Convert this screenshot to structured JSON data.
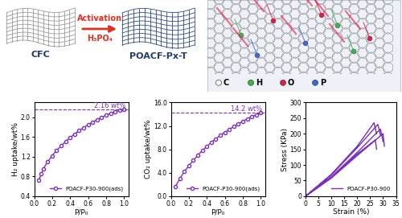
{
  "diagram": {
    "start_label": "CFC",
    "arrow_label": "Activation",
    "reagent": "H₃PO₄",
    "product_label": "POACF-Px-T",
    "atom_legend": [
      {
        "label": "C",
        "color": "#ffffff"
      },
      {
        "label": "H",
        "color": "#3cb44b"
      },
      {
        "label": "O",
        "color": "#e6194b"
      },
      {
        "label": "P",
        "color": "#4363d8"
      }
    ]
  },
  "chart_data": [
    {
      "type": "line",
      "x_label": "P/P₀",
      "y_label": "H₂ uptake/wt%",
      "xlim": [
        0,
        1.05
      ],
      "ylim": [
        0.4,
        2.3
      ],
      "xticks": [
        {
          "value": 0,
          "label": "0.0"
        },
        {
          "value": 0.2,
          "label": "0.2"
        },
        {
          "value": 0.4,
          "label": "0.4"
        },
        {
          "value": 0.6,
          "label": "0.6"
        },
        {
          "value": 0.8,
          "label": "0.8"
        },
        {
          "value": 1.0,
          "label": "1.0"
        }
      ],
      "yticks": [
        {
          "value": 0.4,
          "label": "0.4"
        },
        {
          "value": 0.8,
          "label": "0.8"
        },
        {
          "value": 1.2,
          "label": "1.2"
        },
        {
          "value": 1.6,
          "label": "1.6"
        },
        {
          "value": 2.0,
          "label": "2.0"
        }
      ],
      "hline": 2.16,
      "annotations": [
        "2.16 wt%"
      ],
      "legend": "lower right",
      "series": [
        {
          "name": "POACF-P30-900(ads)",
          "color": "#7b2fbf",
          "marker": "o",
          "line_style": "solid",
          "x": [
            0.05,
            0.08,
            0.1,
            0.15,
            0.2,
            0.25,
            0.3,
            0.35,
            0.4,
            0.45,
            0.5,
            0.55,
            0.6,
            0.65,
            0.7,
            0.75,
            0.8,
            0.85,
            0.9,
            0.95,
            1.0
          ],
          "values": [
            0.72,
            0.85,
            0.95,
            1.1,
            1.22,
            1.33,
            1.42,
            1.51,
            1.59,
            1.66,
            1.73,
            1.79,
            1.85,
            1.9,
            1.95,
            2.0,
            2.04,
            2.08,
            2.11,
            2.14,
            2.16
          ]
        }
      ]
    },
    {
      "type": "line",
      "x_label": "P/P₀",
      "y_label": "CO₂ uptake/wt%",
      "xlim": [
        0,
        1.05
      ],
      "ylim": [
        0,
        16
      ],
      "xticks": [
        {
          "value": 0,
          "label": "0.0"
        },
        {
          "value": 0.2,
          "label": "0.2"
        },
        {
          "value": 0.4,
          "label": "0.4"
        },
        {
          "value": 0.6,
          "label": "0.6"
        },
        {
          "value": 0.8,
          "label": "0.8"
        },
        {
          "value": 1.0,
          "label": "1.0"
        }
      ],
      "yticks": [
        {
          "value": 0,
          "label": "0.0"
        },
        {
          "value": 4,
          "label": "4.0"
        },
        {
          "value": 8,
          "label": "8.0"
        },
        {
          "value": 12,
          "label": "12.0"
        },
        {
          "value": 16,
          "label": "16.0"
        }
      ],
      "hline": 14.2,
      "annotations": [
        "14.2 wt%"
      ],
      "legend": "lower right",
      "series": [
        {
          "name": "POACF-P30-900(ads)",
          "color": "#7b2fbf",
          "marker": "o",
          "line_style": "solid",
          "x": [
            0.05,
            0.1,
            0.15,
            0.2,
            0.25,
            0.3,
            0.35,
            0.4,
            0.45,
            0.5,
            0.55,
            0.6,
            0.65,
            0.7,
            0.75,
            0.8,
            0.85,
            0.9,
            0.95,
            1.0
          ],
          "values": [
            1.6,
            3.0,
            4.2,
            5.2,
            6.1,
            7.0,
            7.8,
            8.5,
            9.2,
            9.8,
            10.4,
            10.9,
            11.4,
            11.9,
            12.3,
            12.8,
            13.2,
            13.6,
            13.9,
            14.2
          ]
        }
      ]
    },
    {
      "type": "line",
      "x_label": "Strain (%)",
      "y_label": "Stress (KPa)",
      "xlim": [
        0,
        35
      ],
      "ylim": [
        0,
        300
      ],
      "xticks": [
        0,
        5,
        10,
        15,
        20,
        25,
        30,
        35
      ],
      "yticks": [
        0,
        50,
        100,
        150,
        200,
        250,
        300
      ],
      "legend": "lower right",
      "series": [
        {
          "name": "POACF-P30-900",
          "color": "#7b2fbf",
          "marker": "none",
          "line_style": "solid",
          "x": [
            0,
            10,
            20,
            26.5,
            27.5,
            null,
            0,
            10,
            20,
            28,
            29,
            null,
            0,
            10,
            20,
            29,
            30,
            null,
            0,
            10,
            20,
            30,
            30.5,
            null,
            0,
            10,
            20,
            27,
            27.5
          ],
          "values": [
            0,
            70,
            160,
            235,
            200,
            null,
            0,
            68,
            155,
            230,
            195,
            null,
            0,
            62,
            140,
            215,
            175,
            null,
            0,
            58,
            130,
            200,
            160,
            null,
            0,
            60,
            135,
            180,
            150
          ]
        }
      ]
    }
  ]
}
